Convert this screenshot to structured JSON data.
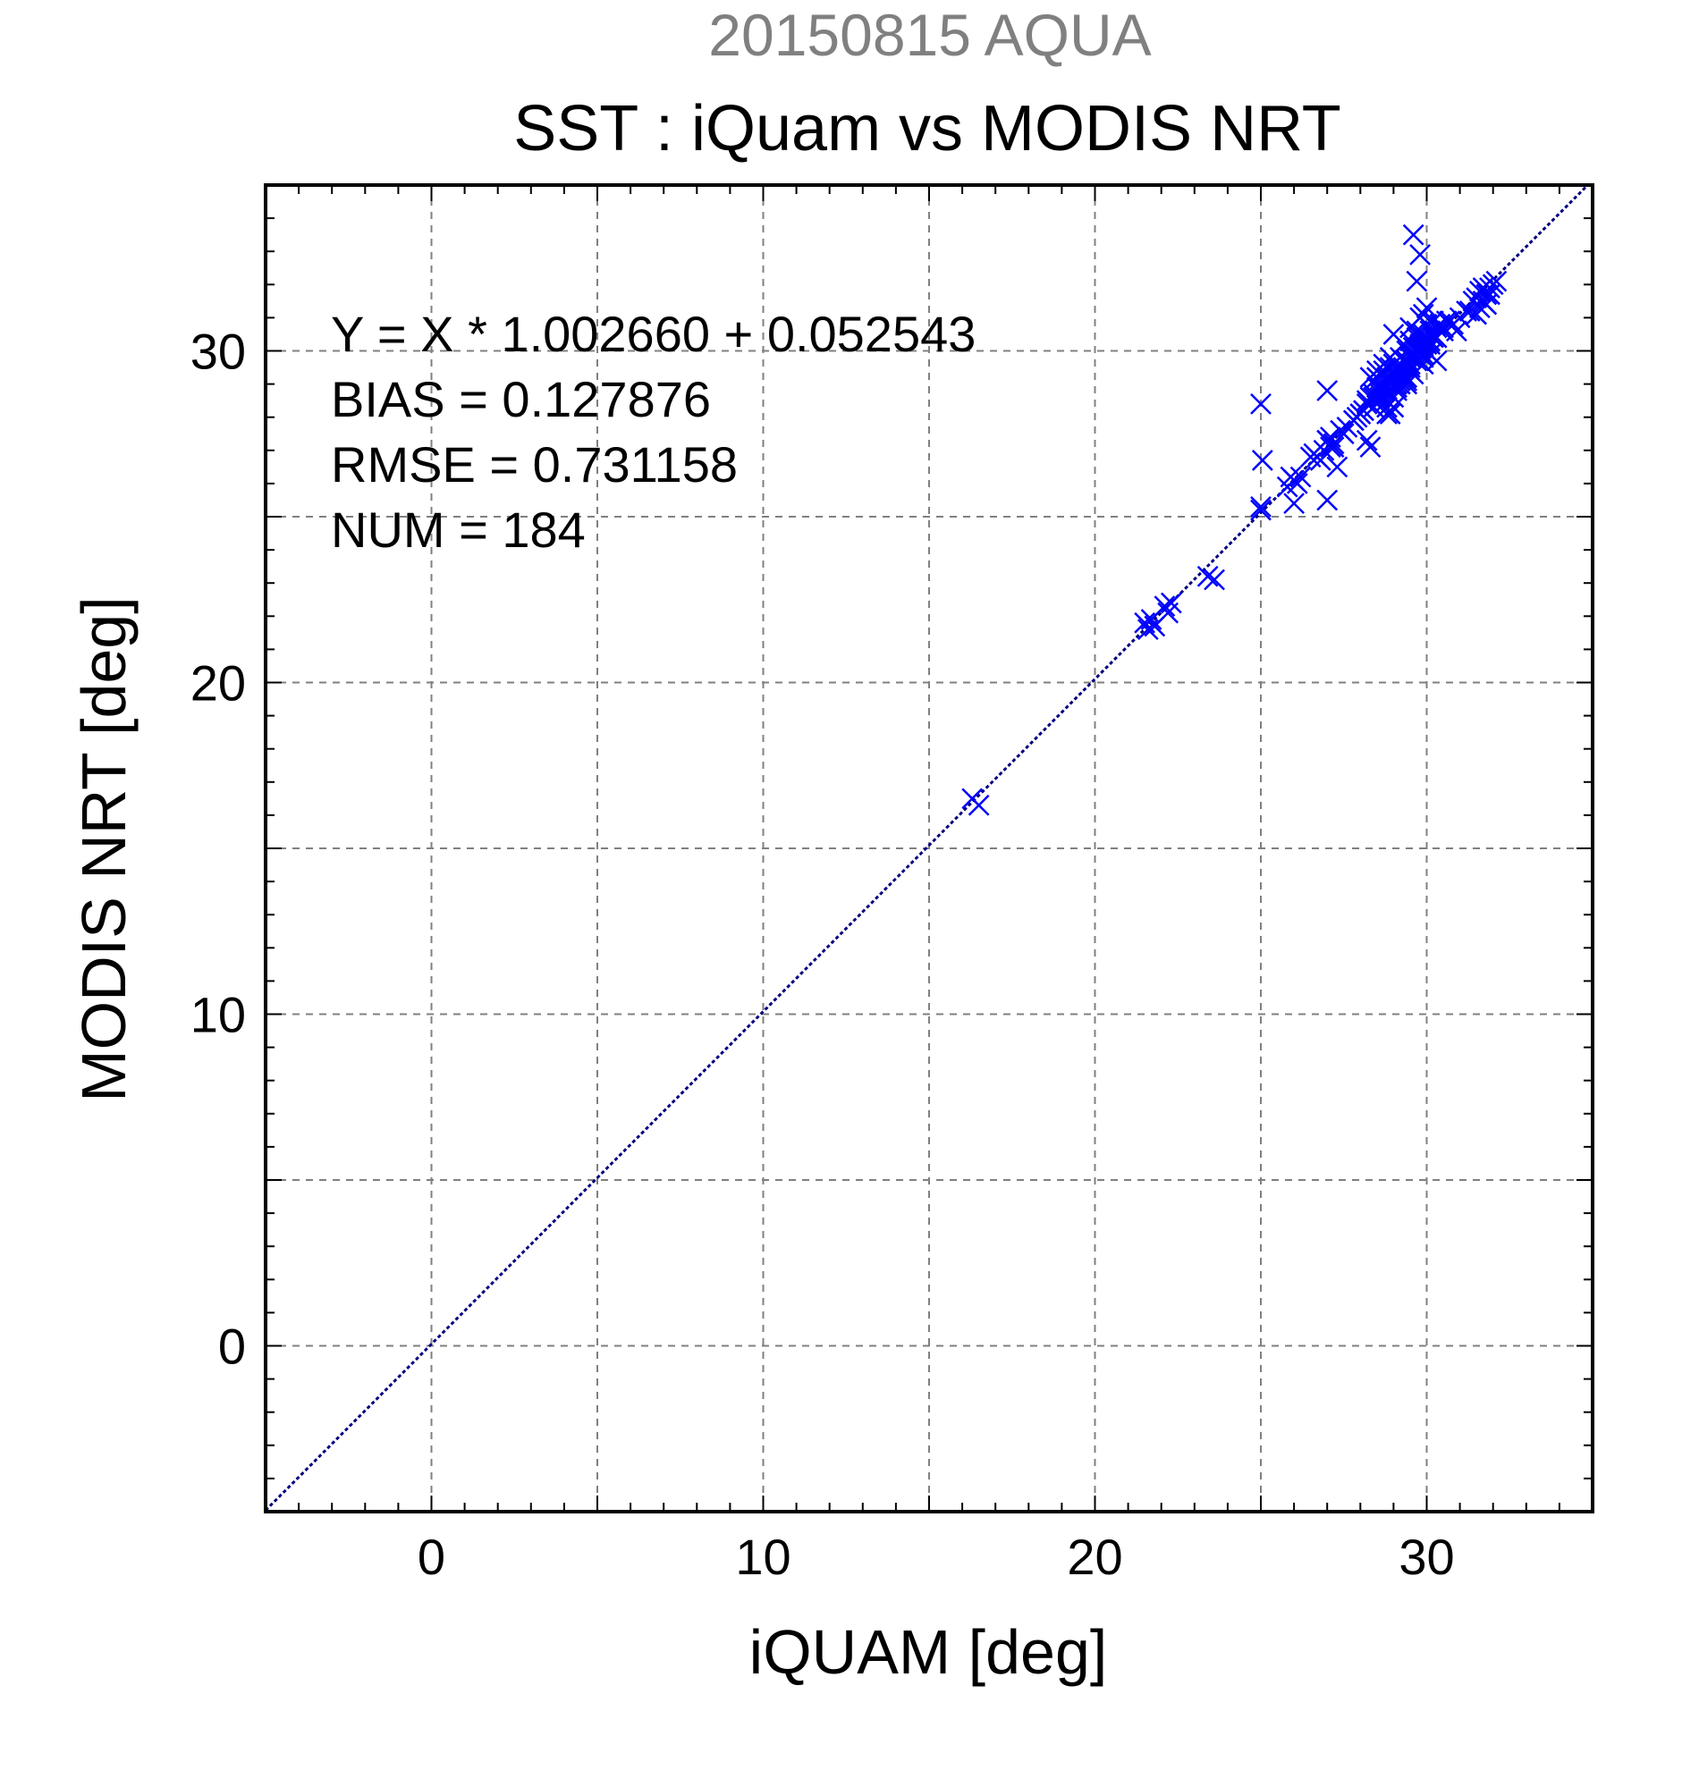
{
  "chart_data": {
    "type": "scatter",
    "supertitle": "20150815 AQUA",
    "title": "SST : iQuam vs MODIS NRT",
    "xlabel": "iQUAM [deg]",
    "ylabel": "MODIS NRT [deg]",
    "xlim": [
      -5,
      35
    ],
    "ylim": [
      -5,
      35
    ],
    "xticks": [
      0,
      10,
      20,
      30
    ],
    "yticks": [
      0,
      10,
      20,
      30
    ],
    "grid": true,
    "stats": [
      "Y = X * 1.002660 + 0.052543",
      "BIAS = 0.127876",
      "RMSE = 0.731158",
      "NUM = 184"
    ],
    "fit": {
      "slope": 1.00266,
      "intercept": 0.052543
    },
    "colors": {
      "points": "#0000ff",
      "fit_line": "#000080",
      "supertitle": "#808080",
      "grid": "#808080"
    },
    "series": [
      {
        "marker": "x",
        "x": [
          16.3,
          16.5,
          21.5,
          21.6,
          21.7,
          21.8,
          22.1,
          22.2,
          22.3,
          23.4,
          23.6,
          25.0,
          25.05,
          25.0,
          25.0,
          25.8,
          25.9,
          26.0,
          26.1,
          26.5,
          26.6,
          26.8,
          26.9,
          27.0,
          27.0,
          27.1,
          27.2,
          27.3,
          27.0,
          27.1,
          27.4,
          27.6,
          27.8,
          27.9,
          28.0,
          28.1,
          28.2,
          28.3,
          28.4,
          28.5,
          28.6,
          28.7,
          28.7,
          28.8,
          28.8,
          28.9,
          28.9,
          29.0,
          29.0,
          29.1,
          29.1,
          29.2,
          29.2,
          29.3,
          29.3,
          29.4,
          29.4,
          29.5,
          29.5,
          29.6,
          29.6,
          29.7,
          29.7,
          29.8,
          29.8,
          29.9,
          29.9,
          30.0,
          30.0,
          30.1,
          30.2,
          30.3,
          30.4,
          30.5,
          30.6,
          28.3,
          28.5,
          28.7,
          28.9,
          29.1,
          29.3,
          29.5,
          29.7,
          29.9,
          30.1,
          30.3,
          28.6,
          28.8,
          29.0,
          29.2,
          29.4,
          29.6,
          29.8,
          30.0,
          28.4,
          28.9,
          29.4,
          29.9,
          28.2,
          29.0,
          29.5,
          30.1,
          30.3,
          29.7,
          30.0,
          29.6,
          29.9,
          29.8,
          30.2,
          29.5,
          29.9,
          30.4,
          28.8,
          27.8,
          28.0,
          28.3,
          29.1,
          26.7,
          26.2,
          26.0,
          27.0,
          27.5,
          27.2,
          28.1,
          28.6,
          29.3,
          29.0,
          29.8,
          30.2,
          31.0,
          31.3,
          31.5,
          31.6,
          31.7,
          31.8,
          31.9,
          32.0,
          31.6,
          31.8,
          31.5,
          31.7,
          31.9,
          32.1,
          31.4,
          31.2,
          30.8,
          30.7,
          30.9,
          30.5,
          30.3,
          29.9,
          29.4,
          29.2,
          28.9,
          28.7,
          28.5,
          28.2,
          28.4,
          28.6,
          28.8,
          29.0,
          29.2,
          29.4,
          29.6,
          29.8,
          30.0,
          30.2,
          29.5,
          29.7,
          29.3,
          29.1,
          28.9,
          28.7,
          29.6,
          29.8,
          30.0,
          29.4,
          29.2,
          29.0,
          28.8,
          29.1,
          29.5,
          29.9,
          30.1
        ],
        "y": [
          16.5,
          16.3,
          21.8,
          21.6,
          21.9,
          21.7,
          22.3,
          22.1,
          22.4,
          23.2,
          23.1,
          28.4,
          26.7,
          25.2,
          25.3,
          25.9,
          26.2,
          25.4,
          26.0,
          26.8,
          26.9,
          26.7,
          27.0,
          27.3,
          25.5,
          27.1,
          27.2,
          26.5,
          28.8,
          27.4,
          27.6,
          27.7,
          27.9,
          28.0,
          28.1,
          28.2,
          28.5,
          27.1,
          28.7,
          28.9,
          28.6,
          29.0,
          29.4,
          29.2,
          28.3,
          29.5,
          29.1,
          28.9,
          29.6,
          29.3,
          28.8,
          29.8,
          29.4,
          29.7,
          30.2,
          29.6,
          30.0,
          30.3,
          29.8,
          30.1,
          29.9,
          30.4,
          30.0,
          30.2,
          29.7,
          30.5,
          30.1,
          30.3,
          30.8,
          30.6,
          30.5,
          30.7,
          30.8,
          30.6,
          30.9,
          29.2,
          29.4,
          29.6,
          29.8,
          29.5,
          29.2,
          29.9,
          30.6,
          31.1,
          30.2,
          30.4,
          28.7,
          28.5,
          28.6,
          29.0,
          29.0,
          29.3,
          29.9,
          30.0,
          28.3,
          28.1,
          29.1,
          29.6,
          27.3,
          28.3,
          29.5,
          29.9,
          29.7,
          32.1,
          31.3,
          33.5,
          30.4,
          32.9,
          30.9,
          30.7,
          29.9,
          30.8,
          28.1,
          27.9,
          28.1,
          28.6,
          29.4,
          26.8,
          26.2,
          26.1,
          27.3,
          27.5,
          27.1,
          28.2,
          28.5,
          29.3,
          30.5,
          31.0,
          30.4,
          31.0,
          31.2,
          31.6,
          31.8,
          31.5,
          31.7,
          31.9,
          32.0,
          31.3,
          31.4,
          31.1,
          31.9,
          31.7,
          32.1,
          31.5,
          31.2,
          30.8,
          30.9,
          30.6,
          30.7,
          30.4,
          29.8,
          29.6,
          29.1,
          29.0,
          28.8,
          29.2,
          28.4,
          28.6,
          28.9,
          29.1,
          29.3,
          29.5,
          29.7,
          29.9,
          30.1,
          30.3,
          30.5,
          29.4,
          29.7,
          29.5,
          29.0,
          28.7,
          28.9,
          29.8,
          30.0,
          30.2,
          29.2,
          29.4,
          29.2,
          29.0,
          28.9,
          29.6,
          30.2,
          30.3
        ]
      }
    ]
  }
}
